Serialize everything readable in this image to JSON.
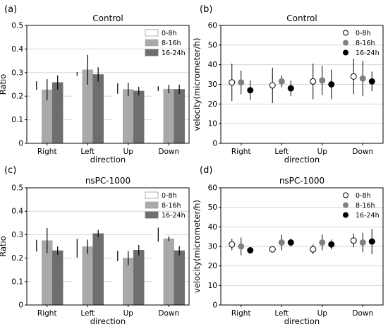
{
  "chart_data": [
    {
      "panel": "(a)",
      "type": "bar",
      "title": "Control",
      "xlabel": "direction",
      "ylabel": "Ratio",
      "ylim": [
        0,
        0.5
      ],
      "yticks": [
        "0",
        "0.1",
        "0.2",
        "0.3",
        "0.4",
        "0.5"
      ],
      "categories": [
        "Right",
        "Left",
        "Up",
        "Down"
      ],
      "grid": "y",
      "legend": "top-right",
      "series": [
        {
          "name": "0-8h",
          "color": "#ffffff",
          "values": [
            0.245,
            0.295,
            0.232,
            0.232
          ],
          "errors": [
            0.018,
            0.008,
            0.022,
            0.01
          ]
        },
        {
          "name": "8-16h",
          "color": "#a9a9a9",
          "values": [
            0.227,
            0.312,
            0.229,
            0.23
          ],
          "errors": [
            0.045,
            0.063,
            0.028,
            0.018
          ]
        },
        {
          "name": "16-24h",
          "color": "#6e6e6e",
          "values": [
            0.258,
            0.292,
            0.222,
            0.229
          ],
          "errors": [
            0.03,
            0.03,
            0.018,
            0.02
          ]
        }
      ]
    },
    {
      "panel": "(b)",
      "type": "scatter",
      "title": "Control",
      "xlabel": "direction",
      "ylabel": "velocity(micrometer/h)",
      "ylim": [
        0,
        60
      ],
      "yticks": [
        "0",
        "10",
        "20",
        "30",
        "40",
        "50",
        "60"
      ],
      "categories": [
        "Right",
        "Left",
        "Up",
        "Down"
      ],
      "grid": "y",
      "legend": "top-right",
      "series": [
        {
          "name": "0-8h",
          "color": "#ffffff",
          "values": [
            31,
            29.5,
            31.5,
            34
          ],
          "errors": [
            9.5,
            9,
            9,
            9
          ]
        },
        {
          "name": "8-16h",
          "color": "#808080",
          "values": [
            31,
            31.5,
            32,
            33
          ],
          "errors": [
            6,
            3,
            7.5,
            9
          ]
        },
        {
          "name": "16-24h",
          "color": "#000000",
          "values": [
            27,
            28,
            30,
            31.5
          ],
          "errors": [
            5,
            4,
            7.5,
            5
          ]
        }
      ]
    },
    {
      "panel": "(c)",
      "type": "bar",
      "title": "nsPC-1000",
      "xlabel": "direction",
      "ylabel": "Ratio",
      "ylim": [
        0,
        0.5
      ],
      "yticks": [
        "0",
        "0.1",
        "0.2",
        "0.3",
        "0.4",
        "0.5"
      ],
      "categories": [
        "Right",
        "Left",
        "Up",
        "Down"
      ],
      "grid": "y",
      "legend": "top-right",
      "series": [
        {
          "name": "0-8h",
          "color": "#ffffff",
          "values": [
            0.253,
            0.242,
            0.209,
            0.3
          ],
          "errors": [
            0.025,
            0.04,
            0.022,
            0.03
          ]
        },
        {
          "name": "8-16h",
          "color": "#a9a9a9",
          "values": [
            0.275,
            0.249,
            0.2,
            0.283
          ],
          "errors": [
            0.053,
            0.03,
            0.03,
            0.01
          ]
        },
        {
          "name": "16-24h",
          "color": "#6e6e6e",
          "values": [
            0.232,
            0.305,
            0.234,
            0.232
          ],
          "errors": [
            0.018,
            0.015,
            0.022,
            0.02
          ]
        }
      ]
    },
    {
      "panel": "(d)",
      "type": "scatter",
      "title": "nsPC-1000",
      "xlabel": "direction",
      "ylabel": "velocity(micrometer/h)",
      "ylim": [
        0,
        60
      ],
      "yticks": [
        "0",
        "10",
        "20",
        "30",
        "40",
        "50",
        "60"
      ],
      "categories": [
        "Right",
        "Left",
        "Up",
        "Down"
      ],
      "grid": "y",
      "legend": "top-right",
      "series": [
        {
          "name": "0-8h",
          "color": "#ffffff",
          "values": [
            31,
            28.5,
            28.5,
            33
          ],
          "errors": [
            3,
            1.5,
            2.5,
            3.5
          ]
        },
        {
          "name": "8-16h",
          "color": "#808080",
          "values": [
            30,
            32,
            32,
            32
          ],
          "errors": [
            4.5,
            4,
            4,
            5
          ]
        },
        {
          "name": "16-24h",
          "color": "#000000",
          "values": [
            28,
            32,
            31,
            32.5
          ],
          "errors": [
            1.5,
            2,
            2.5,
            6.5
          ]
        }
      ]
    }
  ]
}
